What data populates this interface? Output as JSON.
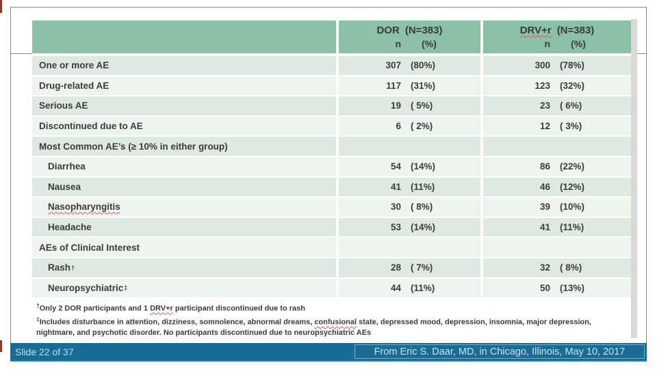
{
  "slide": {
    "footer": {
      "left": "Slide 22 of 37",
      "right": "From Eric S. Daar, MD, in Chicago, Illinois, May 10, 2017",
      "bar_color": "#176d96"
    },
    "colors": {
      "header_green": "#8bc1a7",
      "row_dark": "#dde9e2",
      "row_light": "#edf4ef",
      "squiggle_red": "#d1604f"
    },
    "footnotes": {
      "f1_symbol": "†",
      "f1_pre": "Only 2 DOR participants and 1 ",
      "f1_misspelled": "DRV+r",
      "f1_post": " participant discontinued due to rash",
      "f2_symbol": "‡",
      "f2_pre": "Includes disturbance in attention, dizziness, somnolence, abnormal dreams, ",
      "f2_misspelled": "confusional",
      "f2_post": " state, depressed mood, depression, insomnia, major depression, nightmare, and psychotic disorder. No participants discontinued due to neuropsychiatric AEs"
    },
    "table": {
      "header": {
        "dor_name": "DOR",
        "dor_n": "(N=383)",
        "drv_name": "DRV+r",
        "drv_n": "(N=383)",
        "sub_n": "n",
        "sub_pct": "(%)"
      },
      "rows": [
        {
          "label": "One or more AE",
          "sup": "",
          "dor_n": "307",
          "dor_pct": "(80%)",
          "drv_n": "300",
          "drv_pct": "(78%)"
        },
        {
          "label": "Drug-related AE",
          "sup": "",
          "dor_n": "117",
          "dor_pct": "(31%)",
          "drv_n": "123",
          "drv_pct": "(32%)"
        },
        {
          "label": "Serious AE",
          "sup": "",
          "dor_n": "19",
          "dor_pct": "( 5%)",
          "drv_n": "23",
          "drv_pct": "( 6%)"
        },
        {
          "label": "Discontinued due to AE",
          "sup": "",
          "dor_n": "6",
          "dor_pct": "( 2%)",
          "drv_n": "12",
          "drv_pct": "( 3%)"
        },
        {
          "label": "Most Common AE’s (≥ 10% in either group)",
          "sup": "",
          "dor_n": "",
          "dor_pct": "",
          "drv_n": "",
          "drv_pct": ""
        },
        {
          "label": "Diarrhea",
          "sup": "",
          "dor_n": "54",
          "dor_pct": "(14%)",
          "drv_n": "86",
          "drv_pct": "(22%)"
        },
        {
          "label": "Nausea",
          "sup": "",
          "dor_n": "41",
          "dor_pct": "(11%)",
          "drv_n": "46",
          "drv_pct": "(12%)"
        },
        {
          "label": "Nasopharyngitis",
          "sup": "",
          "dor_n": "30",
          "dor_pct": "( 8%)",
          "drv_n": "39",
          "drv_pct": "(10%)"
        },
        {
          "label": "Headache",
          "sup": "",
          "dor_n": "53",
          "dor_pct": "(14%)",
          "drv_n": "41",
          "drv_pct": "(11%)"
        },
        {
          "label": "AEs of Clinical Interest",
          "sup": "",
          "dor_n": "",
          "dor_pct": "",
          "drv_n": "",
          "drv_pct": ""
        },
        {
          "label": "Rash",
          "sup": "†",
          "dor_n": "28",
          "dor_pct": "( 7%)",
          "drv_n": "32",
          "drv_pct": "( 8%)"
        },
        {
          "label": "Neuropsychiatric",
          "sup": "‡",
          "dor_n": "44",
          "dor_pct": "(11%)",
          "drv_n": "50",
          "drv_pct": "(13%)"
        }
      ]
    }
  }
}
